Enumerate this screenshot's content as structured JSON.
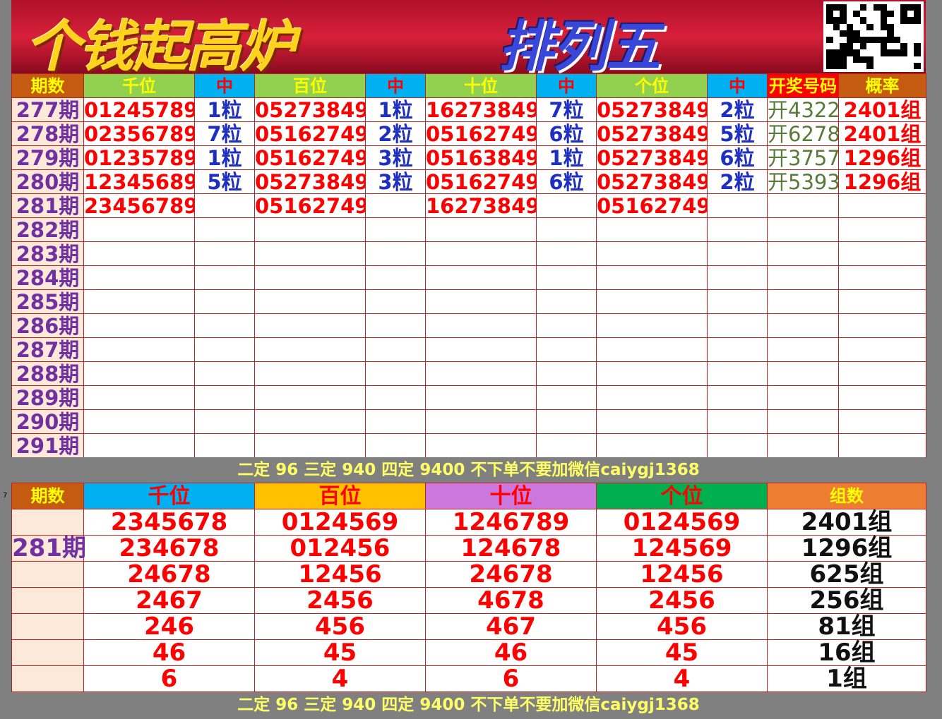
{
  "banner": {
    "title_left": "个钱起高炉",
    "title_right": "排列五",
    "qr_code": "qr-code"
  },
  "colors": {
    "period_bg": "#fde9d9",
    "period_text": "#7030a0",
    "number_red": "#ff0000",
    "hit_blue": "#1f2fc0",
    "draw_green": "#5a7a3a"
  },
  "top_table": {
    "headers": [
      "期数",
      "千位",
      "中",
      "百位",
      "中",
      "十位",
      "中",
      "个位",
      "中",
      "开奖号码",
      "概率"
    ],
    "rows": [
      [
        "277期",
        "01245789",
        "1粒",
        "05273849",
        "1粒",
        "16273849",
        "7粒",
        "05273849",
        "2粒",
        "开4322",
        "2401组"
      ],
      [
        "278期",
        "02356789",
        "7粒",
        "05162749",
        "2粒",
        "05162749",
        "6粒",
        "05273849",
        "5粒",
        "开6278",
        "2401组"
      ],
      [
        "279期",
        "01235789",
        "1粒",
        "05162749",
        "3粒",
        "05163849",
        "1粒",
        "05273849",
        "6粒",
        "开3757",
        "1296组"
      ],
      [
        "280期",
        "12345689",
        "5粒",
        "05273849",
        "3粒",
        "05162749",
        "6粒",
        "05273849",
        "2粒",
        "开5393",
        "1296组"
      ],
      [
        "281期",
        "23456789",
        "",
        "05162749",
        "",
        "16273849",
        "",
        "05162749",
        "",
        "",
        ""
      ],
      [
        "282期",
        "",
        "",
        "",
        "",
        "",
        "",
        "",
        "",
        "",
        ""
      ],
      [
        "283期",
        "",
        "",
        "",
        "",
        "",
        "",
        "",
        "",
        "",
        ""
      ],
      [
        "284期",
        "",
        "",
        "",
        "",
        "",
        "",
        "",
        "",
        "",
        ""
      ],
      [
        "285期",
        "",
        "",
        "",
        "",
        "",
        "",
        "",
        "",
        "",
        ""
      ],
      [
        "286期",
        "",
        "",
        "",
        "",
        "",
        "",
        "",
        "",
        "",
        ""
      ],
      [
        "287期",
        "",
        "",
        "",
        "",
        "",
        "",
        "",
        "",
        "",
        ""
      ],
      [
        "288期",
        "",
        "",
        "",
        "",
        "",
        "",
        "",
        "",
        "",
        ""
      ],
      [
        "289期",
        "",
        "",
        "",
        "",
        "",
        "",
        "",
        "",
        "",
        ""
      ],
      [
        "290期",
        "",
        "",
        "",
        "",
        "",
        "",
        "",
        "",
        "",
        ""
      ],
      [
        "291期",
        "",
        "",
        "",
        "",
        "",
        "",
        "",
        "",
        "",
        ""
      ]
    ]
  },
  "notice": "二定 96 三定 940 四定 9400 不下单不要加微信caiygj1368",
  "row_marker": "7",
  "bottom_table": {
    "headers": [
      "期数",
      "千位",
      "百位",
      "十位",
      "个位",
      "组数"
    ],
    "header_colors": [
      "#c55a11",
      "#00b0f0",
      "#ffc000",
      "#cc77dd",
      "#00b050",
      "#ed7d31"
    ],
    "period": "281期",
    "rows": [
      [
        "2345678",
        "0124569",
        "1246789",
        "0124569",
        "2401组"
      ],
      [
        "234678",
        "012456",
        "124678",
        "124569",
        "1296组"
      ],
      [
        "24678",
        "12456",
        "24678",
        "12456",
        "625组"
      ],
      [
        "2467",
        "2456",
        "4678",
        "2456",
        "256组"
      ],
      [
        "246",
        "456",
        "467",
        "456",
        "81组"
      ],
      [
        "46",
        "45",
        "46",
        "45",
        "16组"
      ],
      [
        "6",
        "4",
        "6",
        "4",
        "1组"
      ]
    ]
  },
  "notice_bottom": "二定 96 三定 940 四定 9400 不下单不要加微信caiygj1368"
}
